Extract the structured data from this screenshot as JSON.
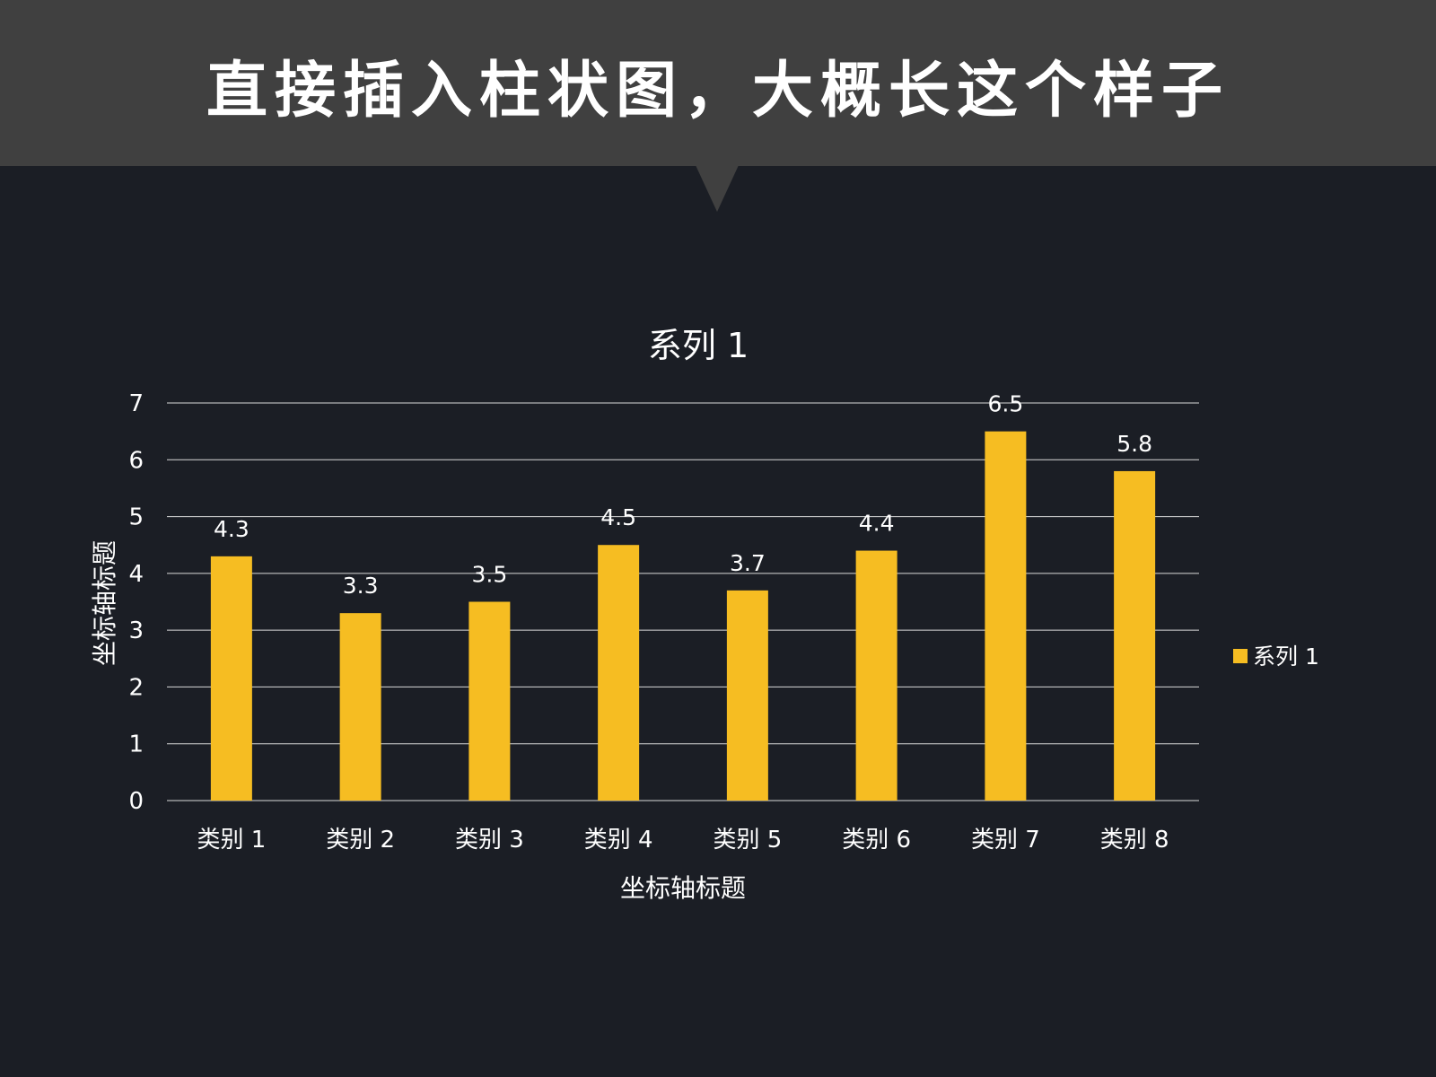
{
  "header": {
    "title": "直接插入柱状图，大概长这个样子"
  },
  "colors": {
    "background": "#1b1e25",
    "header_bg": "#404040",
    "bar": "#f6bd22",
    "gridline": "#d9d9d9",
    "text": "#ffffff"
  },
  "chart_data": {
    "type": "bar",
    "title": "系列 1",
    "categories": [
      "类别 1",
      "类别 2",
      "类别 3",
      "类别 4",
      "类别 5",
      "类别 6",
      "类别 7",
      "类别 8"
    ],
    "series": [
      {
        "name": "系列 1",
        "values": [
          4.3,
          3.3,
          3.5,
          4.5,
          3.7,
          4.4,
          6.5,
          5.8
        ]
      }
    ],
    "xlabel": "坐标轴标题",
    "ylabel": "坐标轴标题",
    "ylim": [
      0,
      7
    ],
    "yticks": [
      "0",
      "1",
      "2",
      "3",
      "4",
      "5",
      "6",
      "7"
    ],
    "data_labels": [
      "4.3",
      "3.3",
      "3.5",
      "4.5",
      "3.7",
      "4.4",
      "6.5",
      "5.8"
    ],
    "grid": true,
    "legend": "right"
  }
}
